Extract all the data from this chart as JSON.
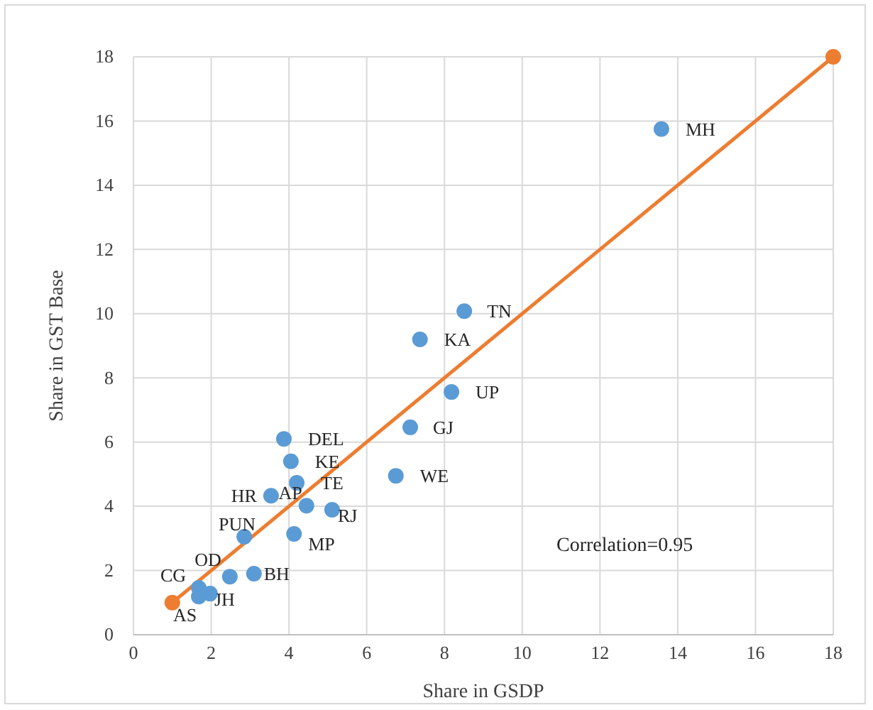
{
  "chart_data": {
    "type": "scatter",
    "xlabel": "Share in GSDP",
    "ylabel": "Share in GST Base",
    "xlim": [
      0,
      18
    ],
    "xticks": [
      0,
      2,
      4,
      6,
      8,
      10,
      12,
      14,
      16,
      18
    ],
    "ylim": [
      0,
      18
    ],
    "yticks": [
      0,
      2,
      4,
      6,
      8,
      10,
      12,
      14,
      16,
      18
    ],
    "grid": true,
    "series": [
      {
        "type": "scatter",
        "color": "#5b9bd5",
        "marker": "circle",
        "x": [
          13.58,
          8.51,
          7.37,
          8.18,
          7.12,
          6.75,
          3.87,
          4.05,
          4.2,
          3.54,
          4.45,
          5.11,
          4.13,
          2.85,
          3.1,
          2.48,
          1.68,
          1.97,
          1.68
        ],
        "values": [
          15.75,
          10.08,
          9.2,
          7.56,
          6.46,
          4.95,
          6.1,
          5.4,
          4.73,
          4.33,
          4.02,
          3.89,
          3.14,
          3.05,
          1.9,
          1.81,
          1.46,
          1.28,
          1.19
        ]
      },
      {
        "type": "line",
        "color": "#ed7d31",
        "marker": "circle",
        "x": [
          1,
          18
        ],
        "values": [
          1,
          18
        ]
      }
    ],
    "annotations": [
      {
        "text": "MH",
        "x": 13.58,
        "y": 15.75
      },
      {
        "text": "TN",
        "x": 8.51,
        "y": 10.08
      },
      {
        "text": "KA",
        "x": 7.37,
        "y": 9.2
      },
      {
        "text": "UP",
        "x": 8.18,
        "y": 7.56
      },
      {
        "text": "GJ",
        "x": 7.12,
        "y": 6.46
      },
      {
        "text": "WE",
        "x": 6.75,
        "y": 4.95
      },
      {
        "text": "DEL",
        "x": 3.87,
        "y": 6.1
      },
      {
        "text": "KE",
        "x": 4.05,
        "y": 5.4
      },
      {
        "text": "TE",
        "x": 4.2,
        "y": 4.73
      },
      {
        "text": "HR",
        "x": 3.54,
        "y": 4.33
      },
      {
        "text": "AP",
        "x": 4.45,
        "y": 4.02
      },
      {
        "text": "RJ",
        "x": 5.11,
        "y": 3.89
      },
      {
        "text": "MP",
        "x": 4.13,
        "y": 3.14
      },
      {
        "text": "PUN",
        "x": 2.85,
        "y": 3.05
      },
      {
        "text": "BH",
        "x": 3.1,
        "y": 1.9
      },
      {
        "text": "OD",
        "x": 2.48,
        "y": 1.81
      },
      {
        "text": "CG",
        "x": 1.68,
        "y": 1.46
      },
      {
        "text": "JH",
        "x": 1.97,
        "y": 1.28
      },
      {
        "text": "AS",
        "x": 1.68,
        "y": 1.19
      },
      "Correlation=0.95"
    ]
  }
}
